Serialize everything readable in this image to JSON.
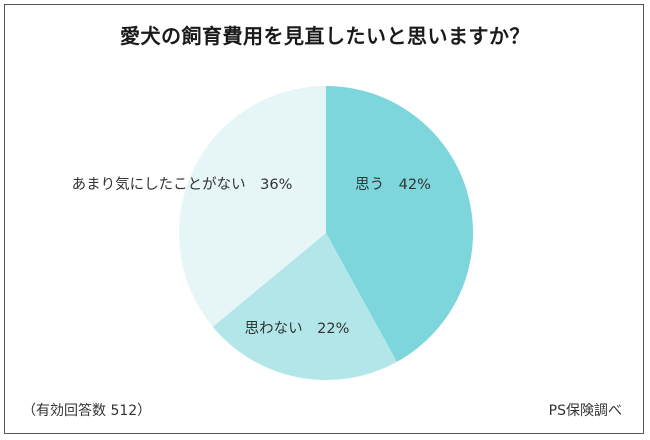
{
  "chart_data": {
    "type": "pie",
    "title": "愛犬の飼育費用を見直したいと思いますか？",
    "slices": [
      {
        "label": "思う",
        "value": 42,
        "value_text": "42%",
        "color": "#7dd6dc"
      },
      {
        "label": "思わない",
        "value": 22,
        "value_text": "22%",
        "color": "#b3e6e8"
      },
      {
        "label": "あまり気にしたことがない",
        "value": 36,
        "value_text": "36%",
        "color": "#e6f5f6"
      }
    ],
    "start_angle_deg": 0,
    "direction": "clockwise"
  },
  "footer": {
    "sample": "（有効回答数 512）",
    "source": "PS保険調べ"
  }
}
